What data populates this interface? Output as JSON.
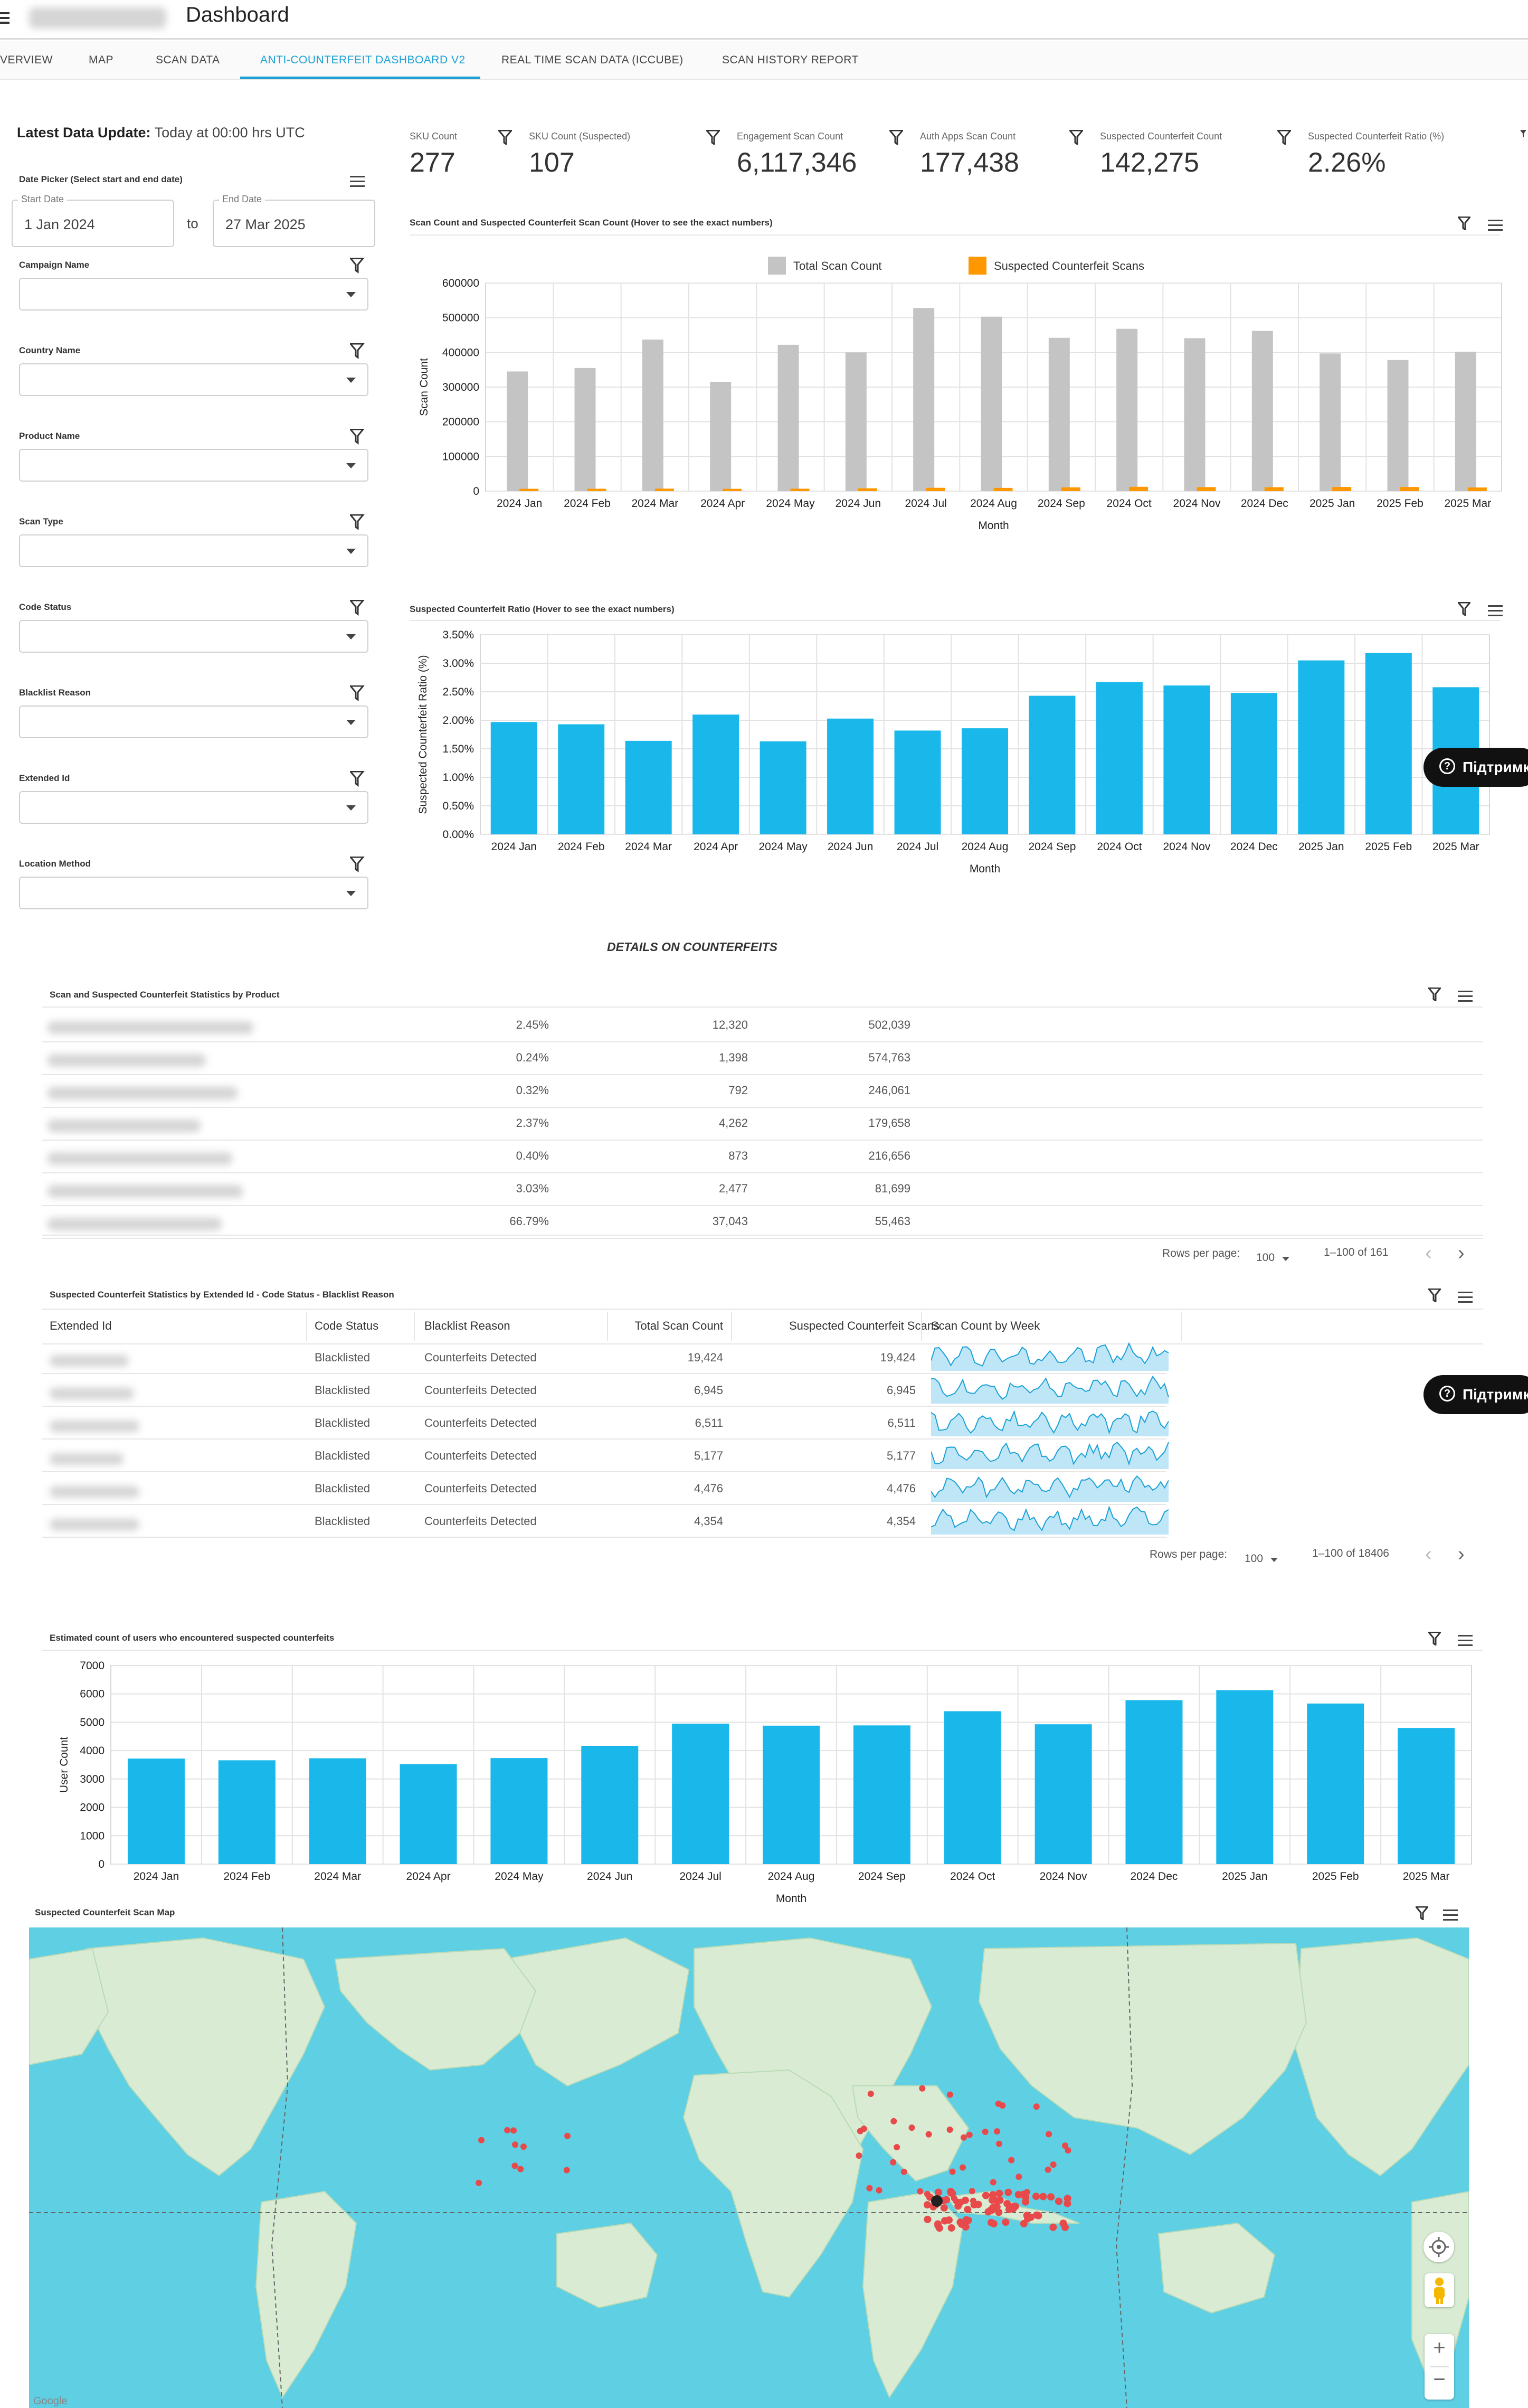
{
  "header": {
    "title": "Dashboard"
  },
  "tabs": [
    {
      "label": "VERVIEW"
    },
    {
      "label": "MAP"
    },
    {
      "label": "SCAN DATA"
    },
    {
      "label": "ANTI-COUNTERFEIT DASHBOARD V2"
    },
    {
      "label": "REAL TIME SCAN DATA (ICCUBE)"
    },
    {
      "label": "SCAN HISTORY REPORT"
    }
  ],
  "latest_update": {
    "label": "Latest Data Update:",
    "value": "Today at 00:00 hrs UTC"
  },
  "date_picker": {
    "title": "Date Picker (Select start and end date)",
    "start_label": "Start Date",
    "start_value": "1 Jan 2024",
    "to": "to",
    "end_label": "End Date",
    "end_value": "27 Mar 2025"
  },
  "filters": [
    {
      "label": "Campaign Name"
    },
    {
      "label": "Country Name"
    },
    {
      "label": "Product Name"
    },
    {
      "label": "Scan Type"
    },
    {
      "label": "Code Status"
    },
    {
      "label": "Blacklist Reason"
    },
    {
      "label": "Extended Id"
    },
    {
      "label": "Location Method"
    }
  ],
  "kpis": [
    {
      "title": "SKU Count",
      "value": "277"
    },
    {
      "title": "SKU Count (Suspected)",
      "value": "107"
    },
    {
      "title": "Engagement Scan Count",
      "value": "6,117,346"
    },
    {
      "title": "Auth Apps Scan Count",
      "value": "177,438"
    },
    {
      "title": "Suspected Counterfeit Count",
      "value": "142,275"
    },
    {
      "title": "Suspected Counterfeit Ratio (%)",
      "value": "2.26%"
    }
  ],
  "colors": {
    "accent": "#1aa1d6",
    "bar_blue": "#1ab8ea",
    "bar_grey": "#c4c4c4",
    "bar_orange": "#ff9800",
    "map_water": "#5fcfe4",
    "map_land": "#d9ecd3",
    "map_marker": "#e8494a"
  },
  "chart1_title": "Scan Count and Suspected Counterfeit Scan Count (Hover to see the exact numbers)",
  "chart2_title": "Suspected Counterfeit Ratio (Hover to see the exact numbers)",
  "chart3_title": "Estimated count of users who encountered suspected counterfeits",
  "chart_data": [
    {
      "type": "bar",
      "title": "Scan Count and Suspected Counterfeit Scan Count (Hover to see the exact numbers)",
      "xlabel": "Month",
      "ylabel": "Scan Count",
      "ylim": [
        0,
        600000
      ],
      "yticks": [
        "0",
        "100000",
        "200000",
        "300000",
        "400000",
        "500000",
        "600000"
      ],
      "categories": [
        "2024 Jan",
        "2024 Feb",
        "2024 Mar",
        "2024 Apr",
        "2024 May",
        "2024 Jun",
        "2024 Jul",
        "2024 Aug",
        "2024 Sep",
        "2024 Oct",
        "2024 Nov",
        "2024 Dec",
        "2025 Jan",
        "2025 Feb",
        "2025 Mar"
      ],
      "legend": "top-center",
      "series": [
        {
          "name": "Total Scan Count",
          "color": "#c4c4c4",
          "values": [
            345000,
            355000,
            437000,
            315000,
            422000,
            400000,
            528000,
            503000,
            442000,
            468000,
            441000,
            462000,
            397000,
            378000,
            402000
          ]
        },
        {
          "name": "Suspected Counterfeit Scans",
          "color": "#ff9800",
          "values": [
            6800,
            6800,
            7100,
            6600,
            6900,
            8100,
            9600,
            9300,
            10700,
            12500,
            11500,
            11300,
            12100,
            12000,
            10400
          ]
        }
      ]
    },
    {
      "type": "bar",
      "title": "Suspected Counterfeit Ratio (Hover to see the exact numbers)",
      "xlabel": "Month",
      "ylabel": "Suspected Counterfeit Ratio (%)",
      "ylim": [
        0,
        3.5
      ],
      "yticks": [
        "0.00%",
        "0.50%",
        "1.00%",
        "1.50%",
        "2.00%",
        "2.50%",
        "3.00%",
        "3.50%"
      ],
      "categories": [
        "2024 Jan",
        "2024 Feb",
        "2024 Mar",
        "2024 Apr",
        "2024 May",
        "2024 Jun",
        "2024 Jul",
        "2024 Aug",
        "2024 Sep",
        "2024 Oct",
        "2024 Nov",
        "2024 Dec",
        "2025 Jan",
        "2025 Feb",
        "2025 Mar"
      ],
      "series": [
        {
          "color": "#1ab8ea",
          "values": [
            1.97,
            1.93,
            1.64,
            2.1,
            1.63,
            2.03,
            1.82,
            1.86,
            2.43,
            2.67,
            2.61,
            2.48,
            3.05,
            3.18,
            2.58
          ]
        }
      ]
    },
    {
      "type": "bar",
      "title": "Estimated count of users who encountered suspected counterfeits",
      "xlabel": "Month",
      "ylabel": "User Count",
      "ylim": [
        0,
        7000
      ],
      "yticks": [
        "0",
        "1000",
        "2000",
        "3000",
        "4000",
        "5000",
        "6000",
        "7000"
      ],
      "categories": [
        "2024 Jan",
        "2024 Feb",
        "2024 Mar",
        "2024 Apr",
        "2024 May",
        "2024 Jun",
        "2024 Jul",
        "2024 Aug",
        "2024 Sep",
        "2024 Oct",
        "2024 Nov",
        "2024 Dec",
        "2025 Jan",
        "2025 Feb",
        "2025 Mar"
      ],
      "series": [
        {
          "color": "#1ab8ea",
          "values": [
            3720,
            3660,
            3730,
            3520,
            3740,
            4170,
            4950,
            4880,
            4890,
            5390,
            4930,
            5780,
            6130,
            5660,
            4800
          ]
        }
      ]
    }
  ],
  "details_heading": "DETAILS ON COUNTERFEITS",
  "product_table": {
    "title": "Scan and Suspected Counterfeit Statistics by Product",
    "rows": [
      {
        "ratio": "2.45%",
        "suspected": "12,320",
        "total": "502,039"
      },
      {
        "ratio": "0.24%",
        "suspected": "1,398",
        "total": "574,763"
      },
      {
        "ratio": "0.32%",
        "suspected": "792",
        "total": "246,061"
      },
      {
        "ratio": "2.37%",
        "suspected": "4,262",
        "total": "179,658"
      },
      {
        "ratio": "0.40%",
        "suspected": "873",
        "total": "216,656"
      },
      {
        "ratio": "3.03%",
        "suspected": "2,477",
        "total": "81,699"
      },
      {
        "ratio": "66.79%",
        "suspected": "37,043",
        "total": "55,463"
      }
    ],
    "rows_per_page_label": "Rows per page:",
    "rows_per_page": "100",
    "pagination": "1–100 of 161"
  },
  "extended_table": {
    "title": "Suspected Counterfeit Statistics by Extended Id - Code Status - Blacklist Reason",
    "headers": [
      "Extended Id",
      "Code Status",
      "Blacklist Reason",
      "Total Scan Count",
      "Suspected Counterfeit Scans",
      "Scan Count by Week"
    ],
    "rows": [
      {
        "status": "Blacklisted",
        "reason": "Counterfeits Detected",
        "total": "19,424",
        "suspected": "19,424"
      },
      {
        "status": "Blacklisted",
        "reason": "Counterfeits Detected",
        "total": "6,945",
        "suspected": "6,945"
      },
      {
        "status": "Blacklisted",
        "reason": "Counterfeits Detected",
        "total": "6,511",
        "suspected": "6,511"
      },
      {
        "status": "Blacklisted",
        "reason": "Counterfeits Detected",
        "total": "5,177",
        "suspected": "5,177"
      },
      {
        "status": "Blacklisted",
        "reason": "Counterfeits Detected",
        "total": "4,476",
        "suspected": "4,476"
      },
      {
        "status": "Blacklisted",
        "reason": "Counterfeits Detected",
        "total": "4,354",
        "suspected": "4,354"
      }
    ],
    "rows_per_page_label": "Rows per page:",
    "rows_per_page": "100",
    "pagination": "1–100 of 18406"
  },
  "map": {
    "title": "Suspected Counterfeit Scan Map",
    "zoom_in": "+",
    "zoom_out": "−",
    "attribution": "Google"
  },
  "support": {
    "label": "Підтримка"
  }
}
